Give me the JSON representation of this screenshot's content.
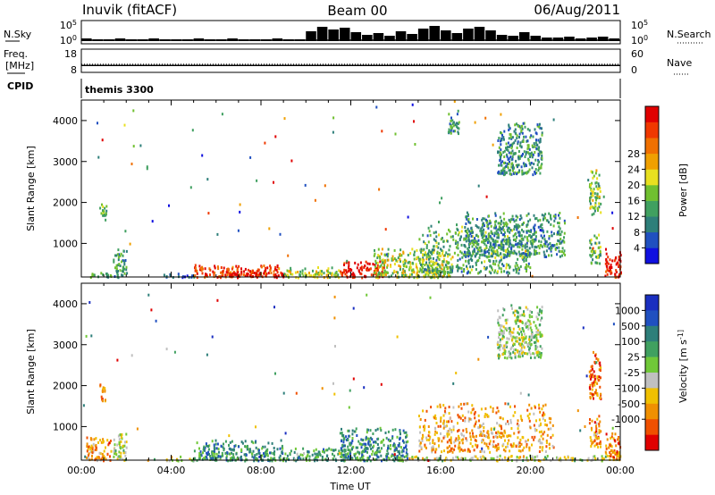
{
  "header": {
    "station": "Inuvik (fitACF)",
    "beam": "Beam 00",
    "date": "06/Aug/2011"
  },
  "left_labels": {
    "nsky": "N.Sky",
    "freq": "Freq.",
    "freq_unit": "[MHz]",
    "cpid": "CPID"
  },
  "right_labels": {
    "nsearch": "N.Search",
    "nave": "Nave"
  },
  "cpid_text": "themis 3300",
  "chart_data": [
    {
      "type": "bar",
      "panel": "noise",
      "y_ticks": [
        "10^5",
        "10^0"
      ],
      "right_ticks": [
        "10^5",
        "10^0"
      ],
      "hours": [
        0,
        0.5,
        1,
        1.5,
        2,
        2.5,
        3,
        3.5,
        4,
        4.5,
        5,
        5.5,
        6,
        6.5,
        7,
        7.5,
        8,
        8.5,
        9,
        9.5,
        10,
        10.5,
        11,
        11.5,
        12,
        12.5,
        13,
        13.5,
        14,
        14.5,
        15,
        15.5,
        16,
        16.5,
        17,
        17.5,
        18,
        18.5,
        19,
        19.5,
        20,
        20.5,
        21,
        21.5,
        22,
        22.5,
        23,
        23.5
      ],
      "values": [
        0.15,
        0.1,
        0.1,
        0.15,
        0.1,
        0.1,
        0.15,
        0.1,
        0.1,
        0.1,
        0.15,
        0.1,
        0.1,
        0.15,
        0.1,
        0.1,
        0.1,
        0.15,
        0.1,
        0.1,
        0.55,
        0.8,
        0.65,
        0.75,
        0.5,
        0.35,
        0.45,
        0.3,
        0.55,
        0.4,
        0.7,
        0.85,
        0.6,
        0.45,
        0.7,
        0.8,
        0.6,
        0.35,
        0.3,
        0.5,
        0.3,
        0.2,
        0.2,
        0.25,
        0.15,
        0.2,
        0.25,
        0.15
      ]
    },
    {
      "type": "line",
      "panel": "frequency",
      "y_ticks": [
        "18",
        "8"
      ],
      "right_ticks": [
        "60",
        "0"
      ],
      "freq_value_mhz": 11,
      "nave_value": 21
    },
    {
      "type": "heatmap",
      "panel": "power",
      "xlabel": "",
      "ylabel": "Slant Range [km]",
      "xlim": [
        0,
        24
      ],
      "ylim": [
        180,
        4500
      ],
      "y_ticks": [
        1000,
        2000,
        3000,
        4000
      ],
      "colorbar_label": "Power [dB]",
      "colorbar_ticks": [
        4,
        8,
        12,
        16,
        20,
        24,
        28
      ],
      "colorbar_colors": [
        "#1010e0",
        "#2050c0",
        "#2e7f7a",
        "#40a060",
        "#70c030",
        "#e8e020",
        "#f0a000",
        "#f07000",
        "#f03800",
        "#e00000"
      ],
      "clusters": [
        {
          "t0": 0.2,
          "t1": 1.3,
          "r0": 190,
          "r1": 330,
          "level": 0.35
        },
        {
          "t0": 0.8,
          "t1": 1.1,
          "r0": 1600,
          "r1": 2100,
          "level": 0.4
        },
        {
          "t0": 1.4,
          "t1": 2.0,
          "r0": 190,
          "r1": 900,
          "level": 0.3
        },
        {
          "t0": 3.6,
          "t1": 5.0,
          "r0": 190,
          "r1": 300,
          "level": 0.2
        },
        {
          "t0": 5.0,
          "t1": 9.0,
          "r0": 190,
          "r1": 500,
          "level": 0.85
        },
        {
          "t0": 6.5,
          "t1": 8.0,
          "r0": 200,
          "r1": 420,
          "level": 0.95
        },
        {
          "t0": 9.0,
          "t1": 11.5,
          "r0": 190,
          "r1": 450,
          "level": 0.5
        },
        {
          "t0": 11.5,
          "t1": 13.5,
          "r0": 190,
          "r1": 600,
          "level": 0.95
        },
        {
          "t0": 13.0,
          "t1": 16.5,
          "r0": 190,
          "r1": 900,
          "level": 0.5
        },
        {
          "t0": 15.0,
          "t1": 20.0,
          "r0": 300,
          "r1": 1600,
          "level": 0.35
        },
        {
          "t0": 17.0,
          "t1": 21.5,
          "r0": 700,
          "r1": 1800,
          "level": 0.3
        },
        {
          "t0": 22.6,
          "t1": 23.1,
          "r0": 1700,
          "r1": 2900,
          "level": 0.45
        },
        {
          "t0": 22.6,
          "t1": 23.1,
          "r0": 500,
          "r1": 1300,
          "level": 0.4
        },
        {
          "t0": 23.3,
          "t1": 24.0,
          "r0": 200,
          "r1": 900,
          "level": 0.95
        },
        {
          "t0": 18.5,
          "t1": 20.5,
          "r0": 2700,
          "r1": 4000,
          "level": 0.3
        },
        {
          "t0": 16.3,
          "t1": 16.8,
          "r0": 3700,
          "r1": 4300,
          "level": 0.3
        }
      ]
    },
    {
      "type": "heatmap",
      "panel": "velocity",
      "xlabel": "Time UT",
      "ylabel": "Slant Range [km]",
      "xlim": [
        0,
        24
      ],
      "ylim": [
        180,
        4500
      ],
      "x_ticks": [
        "00:00",
        "04:00",
        "08:00",
        "12:00",
        "16:00",
        "20:00",
        "00:00"
      ],
      "y_ticks": [
        1000,
        2000,
        3000,
        4000
      ],
      "colorbar_label": "Velocity [m s^-1]",
      "colorbar_ticks": [
        1000,
        500,
        100,
        25,
        -25,
        -100,
        -500,
        -1000
      ],
      "colorbar_colors": [
        "#1a2fc0",
        "#2050c0",
        "#2e7f7a",
        "#40a060",
        "#70c838",
        "#c0c0c0",
        "#f0c000",
        "#f09000",
        "#f05000",
        "#e00000"
      ],
      "clusters": [
        {
          "t0": 0.2,
          "t1": 1.3,
          "r0": 190,
          "r1": 800,
          "level": 0.75
        },
        {
          "t0": 0.8,
          "t1": 1.1,
          "r0": 1600,
          "r1": 2100,
          "level": 0.8
        },
        {
          "t0": 1.4,
          "t1": 2.0,
          "r0": 190,
          "r1": 900,
          "level": 0.5
        },
        {
          "t0": 3.6,
          "t1": 5.0,
          "r0": 190,
          "r1": 300,
          "level": 0.55
        },
        {
          "t0": 5.0,
          "t1": 9.0,
          "r0": 190,
          "r1": 700,
          "level": 0.3
        },
        {
          "t0": 9.0,
          "t1": 12.0,
          "r0": 190,
          "r1": 500,
          "level": 0.35
        },
        {
          "t0": 11.5,
          "t1": 14.5,
          "r0": 190,
          "r1": 1000,
          "level": 0.3
        },
        {
          "t0": 14.0,
          "t1": 24.0,
          "r0": 190,
          "r1": 320,
          "level": 0.55
        },
        {
          "t0": 15.0,
          "t1": 21.0,
          "r0": 400,
          "r1": 1600,
          "level": 0.7
        },
        {
          "t0": 22.6,
          "t1": 23.1,
          "r0": 1700,
          "r1": 2900,
          "level": 0.8
        },
        {
          "t0": 22.6,
          "t1": 23.1,
          "r0": 500,
          "r1": 1300,
          "level": 0.75
        },
        {
          "t0": 23.3,
          "t1": 24.0,
          "r0": 200,
          "r1": 900,
          "level": 0.8
        },
        {
          "t0": 18.5,
          "t1": 20.5,
          "r0": 2700,
          "r1": 4000,
          "level": 0.5
        }
      ]
    }
  ]
}
